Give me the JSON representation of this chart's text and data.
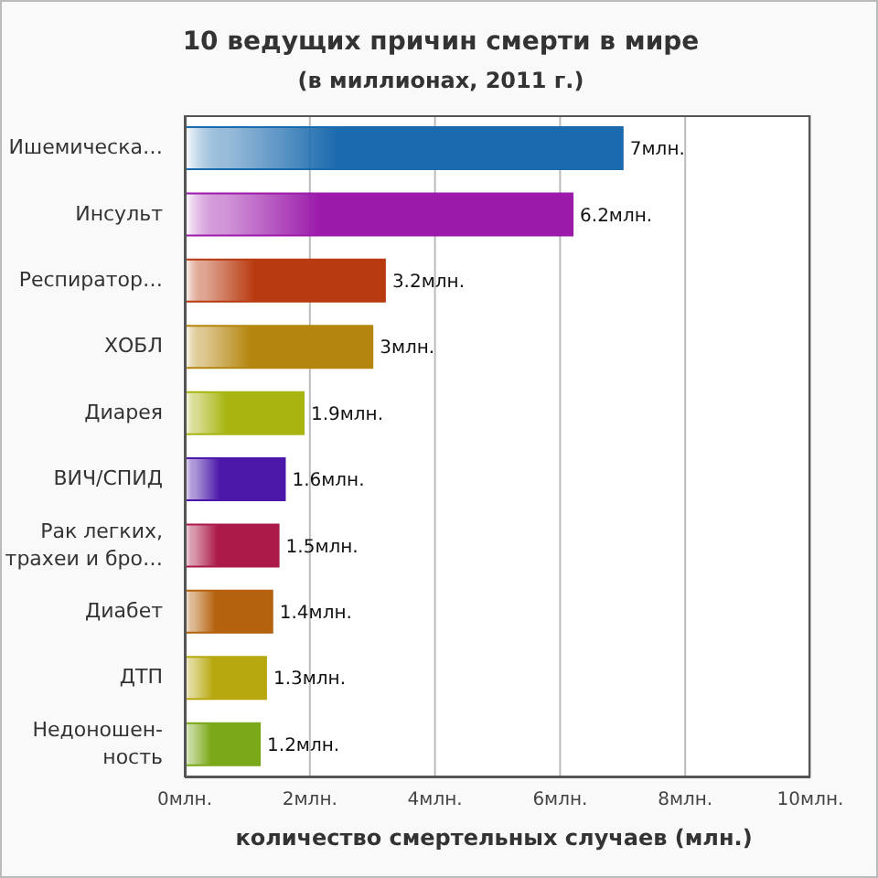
{
  "chart_data": {
    "type": "bar",
    "orientation": "horizontal",
    "title": "10 ведущих причин смерти в мире",
    "subtitle": "(в миллионах, 2011 г.)",
    "xlabel": "количество смертельных случаев (млн.)",
    "categories": [
      "Ишемическа…",
      "Инсульт",
      "Респиратор…",
      "ХОБЛ",
      "Диарея",
      "ВИЧ/СПИД",
      "Рак легких,\nтрахеи и бро…",
      "Диабет",
      "ДТП",
      "Недоношен-\nность"
    ],
    "values": [
      7,
      6.2,
      3.2,
      3,
      1.9,
      1.6,
      1.5,
      1.4,
      1.3,
      1.2
    ],
    "value_labels": [
      "7млн.",
      "6.2млн.",
      "3.2млн.",
      "3млн.",
      "1.9млн.",
      "1.6млн.",
      "1.5млн.",
      "1.4млн.",
      "1.3млн.",
      "1.2млн."
    ],
    "colors": [
      "#1a6aad",
      "#9b1aaa",
      "#b83a10",
      "#b5860f",
      "#a8b510",
      "#4b18aa",
      "#ab1a48",
      "#b5620f",
      "#b8a810",
      "#7aa818"
    ],
    "xlim": [
      0,
      10
    ],
    "xticks": [
      {
        "value": 0,
        "label": "0млн."
      },
      {
        "value": 2,
        "label": "2млн."
      },
      {
        "value": 4,
        "label": "4млн."
      },
      {
        "value": 6,
        "label": "6млн."
      },
      {
        "value": 8,
        "label": "8млн."
      },
      {
        "value": 10,
        "label": "10млн."
      }
    ],
    "grid": "x",
    "legend": false
  }
}
